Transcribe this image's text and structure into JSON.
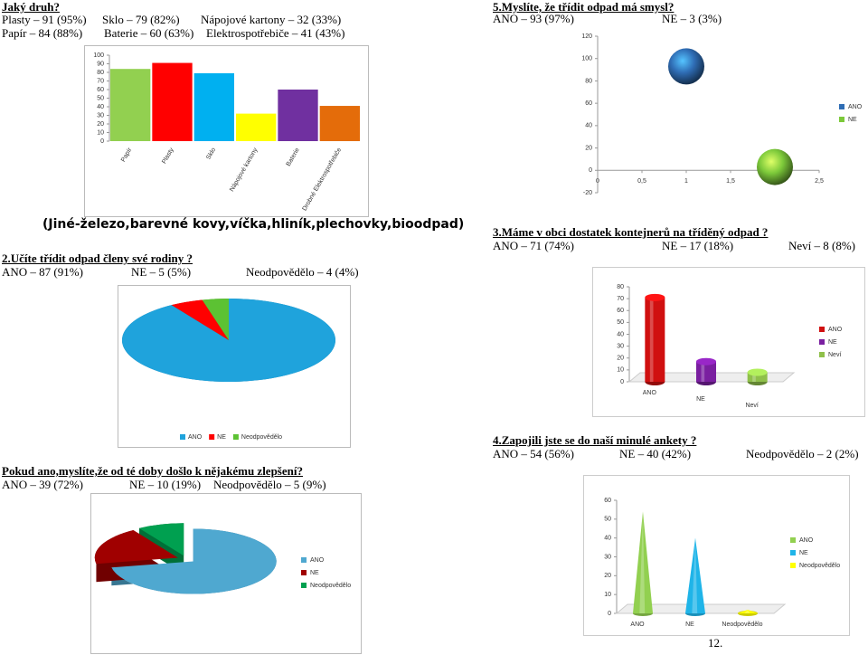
{
  "page_number": "12.",
  "sections": [
    {
      "heading": "Jaký druh?",
      "answers": [
        "Plasty – 91 (95%)",
        "Sklo – 79 (82%)",
        "Nápojové kartony – 32 (33%)",
        "Papír – 84 (88%)",
        "Baterie – 60 (63%)",
        "Elektrospotřebiče – 41 (43%)"
      ],
      "chart": {
        "type": "bar",
        "categories": [
          "Papír",
          "Plasty",
          "Sklo",
          "Nápojové kartony",
          "Baterie",
          "Drobné Elektrospotřebiče"
        ],
        "values": [
          84,
          91,
          79,
          32,
          60,
          41
        ],
        "colors": [
          "#92d050",
          "#ff0000",
          "#00b0f0",
          "#ffff00",
          "#7030a0",
          "#e46c0a"
        ],
        "ylim": [
          0,
          100
        ],
        "yticks": [
          0,
          10,
          20,
          30,
          40,
          50,
          60,
          70,
          80,
          90,
          100
        ]
      },
      "note": "(Jiné-železo,barevné kovy,víčka,hliník,plechovky,bioodpad)"
    },
    {
      "heading": "2.Učíte třídit odpad členy své rodiny ?",
      "answers": [
        "ANO – 87 (91%)",
        "NE – 5 (5%)",
        "Neodpovědělo – 4 (4%)"
      ],
      "chart": {
        "type": "pie",
        "categories": [
          "ANO",
          "NE",
          "Neodpovědělo"
        ],
        "values": [
          91,
          5,
          4
        ],
        "colors": [
          "#1fa3dc",
          "#ff0000",
          "#5cc233"
        ],
        "legend": "bottom"
      }
    },
    {
      "heading": "Pokud ano,myslíte,že od té doby došlo k nějakému zlepšení?",
      "answers": [
        "ANO – 39 (72%)",
        "NE – 10 (19%)",
        "Neodpovědělo – 5 (9%)"
      ],
      "chart": {
        "type": "pie",
        "categories": [
          "ANO",
          "NE",
          "Neodpovědělo"
        ],
        "values": [
          72,
          19,
          9
        ],
        "colors": [
          "#4fa8d0",
          "#a00000",
          "#00a050"
        ],
        "legend": "right",
        "exploded": true
      }
    },
    {
      "heading": "5.Myslíte, že třídit odpad má smysl?",
      "answers": [
        "ANO – 93 (97%)",
        "NE – 3 (3%)"
      ],
      "chart": {
        "type": "scatter",
        "series": [
          {
            "name": "ANO",
            "color": "#2f6db5",
            "x": [
              1
            ],
            "values": [
              93
            ]
          },
          {
            "name": "NE",
            "color": "#7cc93a",
            "x": [
              2
            ],
            "values": [
              3
            ]
          }
        ],
        "xlim": [
          0,
          2.5
        ],
        "xticks": [
          0,
          {
            "value": 0.5,
            "label": "0,5"
          },
          1,
          {
            "value": 1.5,
            "label": "1,5"
          },
          2,
          {
            "value": 2.5,
            "label": "2,5"
          }
        ],
        "ylim": [
          -20,
          120
        ],
        "yticks": [
          -20,
          0,
          20,
          40,
          60,
          80,
          100,
          120
        ],
        "legend": "right"
      }
    },
    {
      "heading": "3.Máme v obci dostatek kontejnerů na tříděný odpad ?",
      "answers": [
        "ANO – 71 (74%)",
        "NE – 17 (18%)",
        "Neví – 8 (8%)"
      ],
      "chart": {
        "type": "bar",
        "shape": "cylinder",
        "categories": [
          "ANO",
          "NE",
          "Neví"
        ],
        "values": [
          71,
          17,
          8
        ],
        "colors": [
          "#d01010",
          "#7a1fa0",
          "#8fc04a"
        ],
        "ylim": [
          0,
          80
        ],
        "yticks": [
          0,
          10,
          20,
          30,
          40,
          50,
          60,
          70,
          80
        ],
        "legend": "right"
      }
    },
    {
      "heading": "4.Zapojili jste se do naší minulé ankety ?",
      "answers": [
        "ANO – 54 (56%)",
        "NE – 40 (42%)",
        "Neodpovědělo – 2 (2%)"
      ],
      "chart": {
        "type": "bar",
        "shape": "cone",
        "categories": [
          "ANO",
          "NE",
          "Neodpovědělo"
        ],
        "values": [
          54,
          40,
          2
        ],
        "colors": [
          "#92d050",
          "#1fb4e8",
          "#ffff00"
        ],
        "ylim": [
          0,
          60
        ],
        "yticks": [
          0,
          10,
          20,
          30,
          40,
          50,
          60
        ],
        "legend": "right"
      }
    }
  ]
}
